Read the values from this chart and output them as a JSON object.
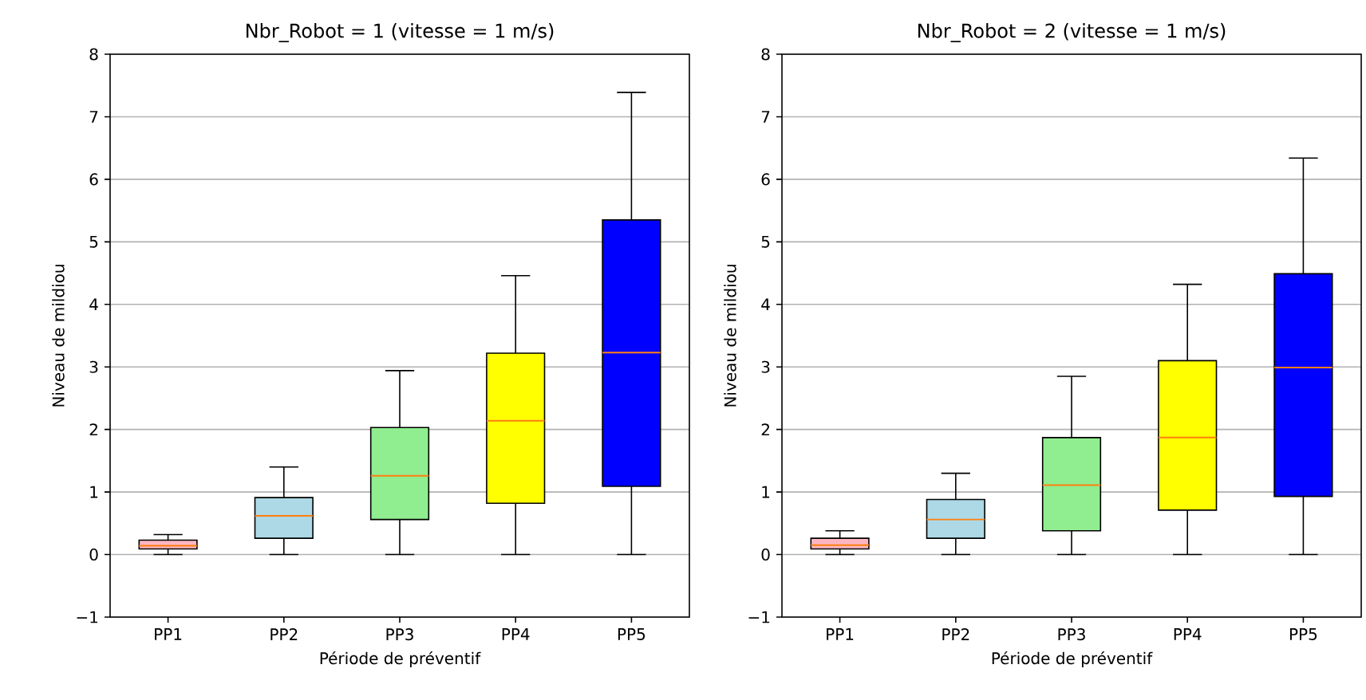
{
  "chart_data": [
    {
      "type": "box",
      "title": "Nbr_Robot = 1 (vitesse = 1 m/s)",
      "xlabel": "Période de préventif",
      "ylabel": "Niveau de mildiou",
      "categories": [
        "PP1",
        "PP2",
        "PP3",
        "PP4",
        "PP5"
      ],
      "colors": [
        "#ffb6c1",
        "#add8e6",
        "#90ee90",
        "#ffff00",
        "#0000ff"
      ],
      "boxes": [
        {
          "low": 0,
          "q1": 0.09,
          "median": 0.14,
          "q3": 0.23,
          "high": 0.32
        },
        {
          "low": 0,
          "q1": 0.26,
          "median": 0.62,
          "q3": 0.91,
          "high": 1.4
        },
        {
          "low": 0,
          "q1": 0.56,
          "median": 1.26,
          "q3": 2.03,
          "high": 2.94
        },
        {
          "low": 0,
          "q1": 0.82,
          "median": 2.14,
          "q3": 3.22,
          "high": 4.46
        },
        {
          "low": 0,
          "q1": 1.09,
          "median": 3.23,
          "q3": 5.35,
          "high": 7.39
        }
      ],
      "ylim": [
        -1,
        8
      ],
      "yticks": [
        {
          "value": -1,
          "label": "−1"
        },
        0,
        1,
        2,
        3,
        4,
        5,
        6,
        7,
        8
      ],
      "grid": "y"
    },
    {
      "type": "box",
      "title": "Nbr_Robot = 2 (vitesse = 1 m/s)",
      "xlabel": "Période de préventif",
      "ylabel": "Niveau de mildiou",
      "categories": [
        "PP1",
        "PP2",
        "PP3",
        "PP4",
        "PP5"
      ],
      "colors": [
        "#ffb6c1",
        "#add8e6",
        "#90ee90",
        "#ffff00",
        "#0000ff"
      ],
      "boxes": [
        {
          "low": 0,
          "q1": 0.09,
          "median": 0.15,
          "q3": 0.26,
          "high": 0.38
        },
        {
          "low": 0,
          "q1": 0.26,
          "median": 0.56,
          "q3": 0.88,
          "high": 1.3
        },
        {
          "low": 0,
          "q1": 0.38,
          "median": 1.11,
          "q3": 1.87,
          "high": 2.85
        },
        {
          "low": 0,
          "q1": 0.71,
          "median": 1.87,
          "q3": 3.1,
          "high": 4.32
        },
        {
          "low": 0,
          "q1": 0.93,
          "median": 2.99,
          "q3": 4.49,
          "high": 6.34
        }
      ],
      "ylim": [
        -1,
        8
      ],
      "yticks": [
        {
          "value": -1,
          "label": "−1"
        },
        0,
        1,
        2,
        3,
        4,
        5,
        6,
        7,
        8
      ],
      "grid": "y"
    }
  ]
}
